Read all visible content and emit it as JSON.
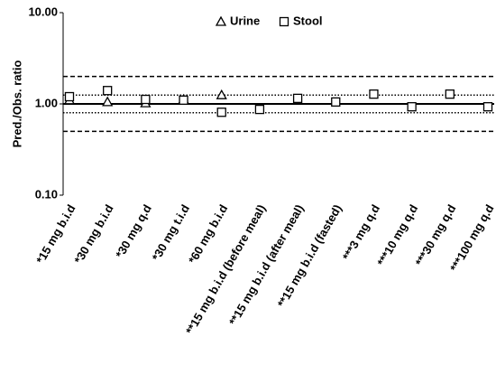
{
  "chart_data": {
    "type": "scatter",
    "y_label": "Pred./Obs. ratio",
    "categories": [
      "*15 mg b.i.d",
      "*30 mg b.i.d",
      "*30 mg q.d",
      "*30 mg t.i.d",
      "*60 mg b.i.d",
      "**15 mg b.i.d (before meal)",
      "**15 mg b.i.d (after meal)",
      "**15 mg b.i.d (fasted)",
      "***3 mg q.d",
      "***10 mg q.d",
      "***30 mg q.d",
      "***100 mg q.d"
    ],
    "series": [
      {
        "name": "Urine",
        "marker": "triangle",
        "color": "#000000",
        "values": [
          1.1,
          1.05,
          1.02,
          1.12,
          1.25,
          null,
          null,
          null,
          null,
          null,
          null,
          null
        ]
      },
      {
        "name": "Stool",
        "marker": "square",
        "color": "#000000",
        "values": [
          1.2,
          1.4,
          1.12,
          1.1,
          0.81,
          0.87,
          1.15,
          1.05,
          1.28,
          0.93,
          1.28,
          0.93
        ]
      }
    ],
    "ylim": [
      0.1,
      10
    ],
    "yticks": [
      {
        "value": 0.1,
        "label": "0.10"
      },
      {
        "value": 1,
        "label": "1.00"
      },
      {
        "value": 10,
        "label": "10.00"
      }
    ],
    "log_y": true,
    "reference_lines": [
      {
        "value": 2,
        "style": "dashed"
      },
      {
        "value": 1.25,
        "style": "dotted"
      },
      {
        "value": 1,
        "style": "solid"
      },
      {
        "value": 0.8,
        "style": "dotted"
      },
      {
        "value": 0.5,
        "style": "dashed"
      }
    ],
    "legend": "top"
  }
}
